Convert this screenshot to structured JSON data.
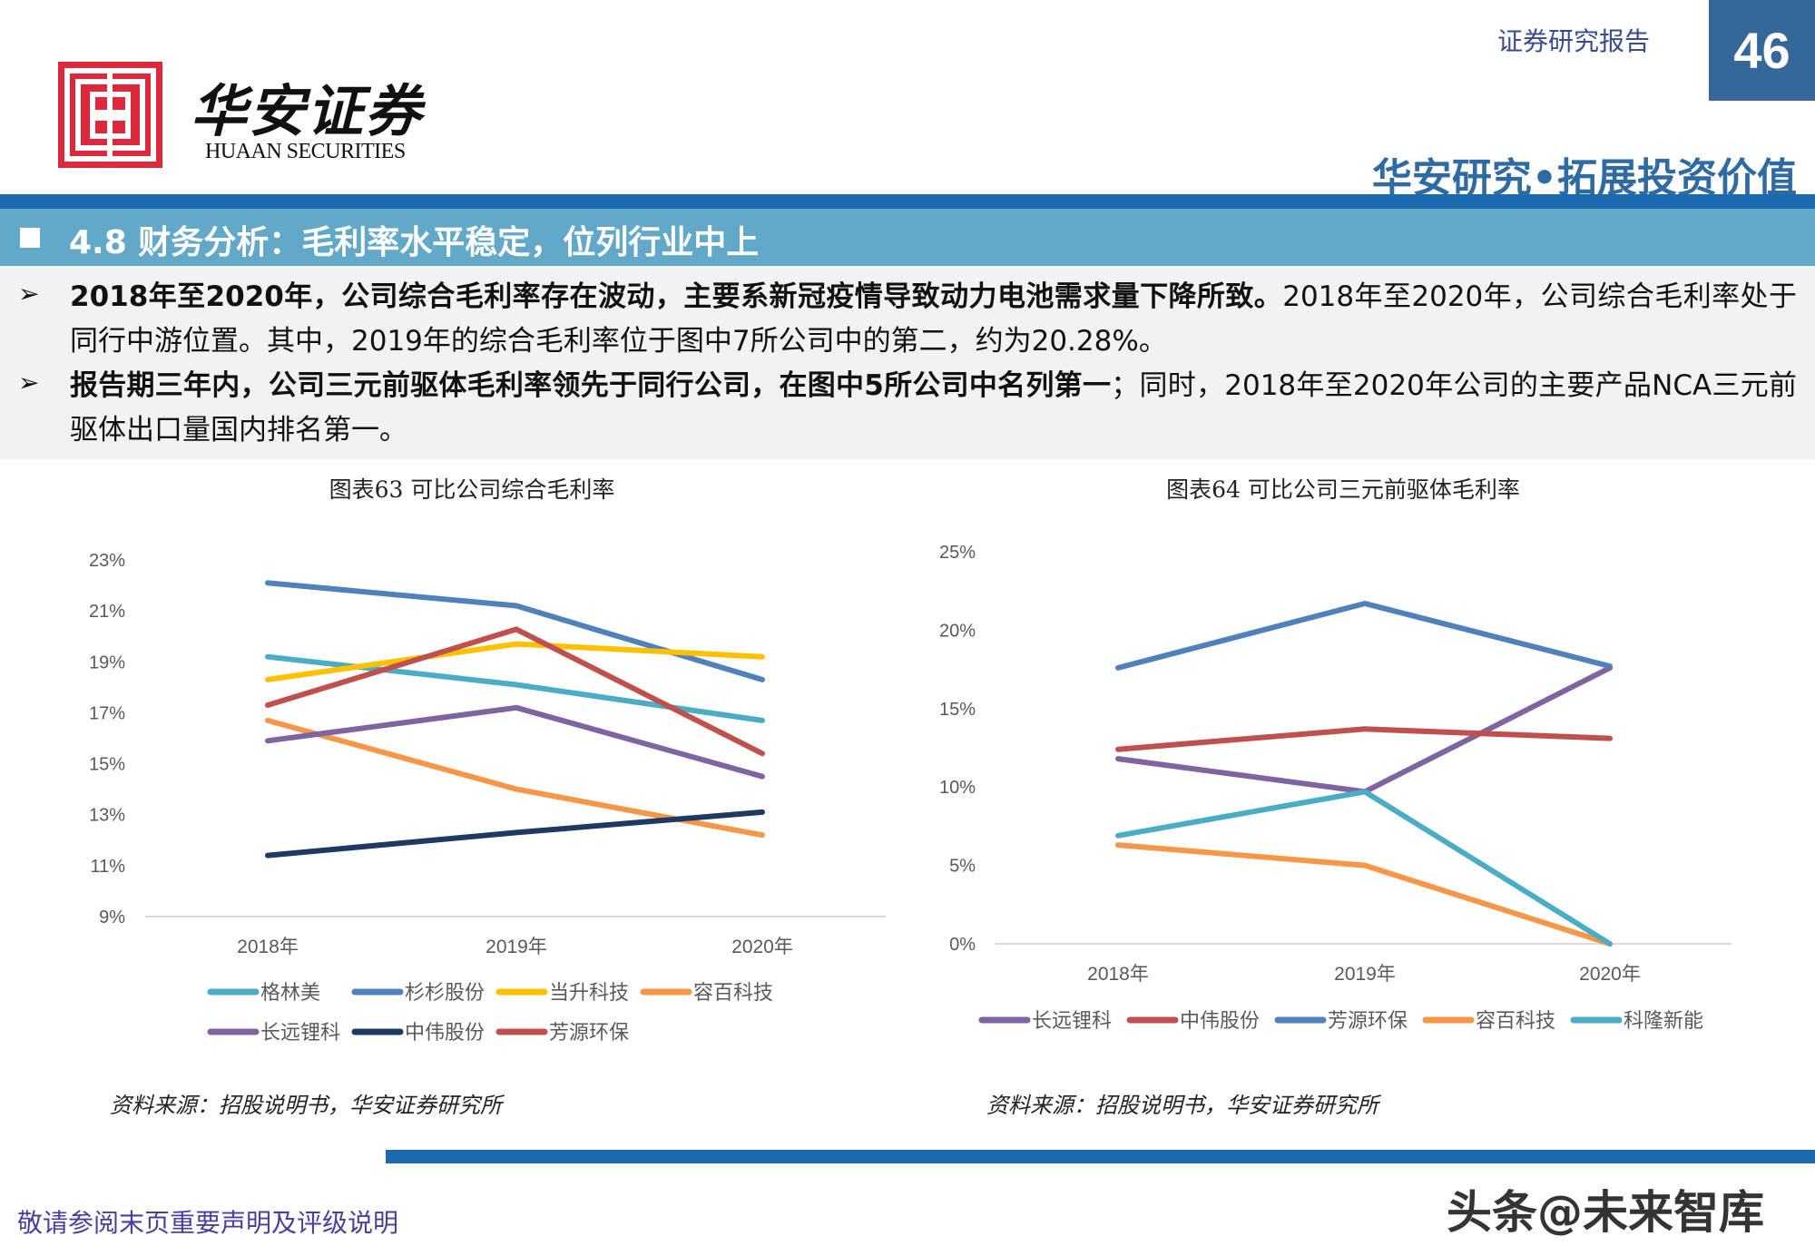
{
  "header": {
    "logo_cn": "华安证券",
    "logo_en": "HUAAN SECURITIES",
    "report_type": "证券研究报告",
    "page_number": "46",
    "slogan": "华安研究•拓展投资价值"
  },
  "section": {
    "title": "4.8 财务分析：毛利率水平稳定，位列行业中上"
  },
  "bullets": [
    {
      "bold": "2018年至2020年，公司综合毛利率存在波动，主要系新冠疫情导致动力电池需求量下降所致。",
      "normal": "2018年至2020年，公司综合毛利率处于同行中游位置。其中，2019年的综合毛利率位于图中7所公司中的第二，约为20.28%。"
    },
    {
      "bold": "报告期三年内，公司三元前驱体毛利率领先于同行公司，在图中5所公司中名列第一",
      "normal": "；同时，2018年至2020年公司的主要产品NCA三元前驱体出口量国内排名第一。"
    }
  ],
  "chart_data": [
    {
      "type": "line",
      "title": "图表63  可比公司综合毛利率",
      "categories": [
        "2018年",
        "2019年",
        "2020年"
      ],
      "ylim": [
        9,
        23
      ],
      "yticks": [
        "9%",
        "11%",
        "13%",
        "15%",
        "17%",
        "19%",
        "21%",
        "23%"
      ],
      "ytick_values": [
        9,
        11,
        13,
        15,
        17,
        19,
        21,
        23
      ],
      "grid": false,
      "legend_placement": "bottom",
      "series": [
        {
          "name": "格林美",
          "color": "#4bacc6",
          "values": [
            19.2,
            18.1,
            16.7
          ]
        },
        {
          "name": "杉杉股份",
          "color": "#4f81bd",
          "values": [
            22.1,
            21.2,
            18.3
          ]
        },
        {
          "name": "当升科技",
          "color": "#ffc000",
          "values": [
            18.3,
            19.7,
            19.2
          ]
        },
        {
          "name": "容百科技",
          "color": "#f79646",
          "values": [
            16.7,
            14.0,
            12.2
          ]
        },
        {
          "name": "长远锂科",
          "color": "#8064a2",
          "values": [
            15.9,
            17.2,
            14.5
          ]
        },
        {
          "name": "中伟股份",
          "color": "#1f3864",
          "values": [
            11.4,
            12.3,
            13.1
          ]
        },
        {
          "name": "芳源环保",
          "color": "#c0504d",
          "values": [
            17.3,
            20.28,
            15.4
          ]
        }
      ],
      "source": "资料来源：招股说明书，华安证券研究所"
    },
    {
      "type": "line",
      "title": "图表64  可比公司三元前驱体毛利率",
      "categories": [
        "2018年",
        "2019年",
        "2020年"
      ],
      "ylim": [
        0,
        25
      ],
      "yticks": [
        "0%",
        "5%",
        "10%",
        "15%",
        "20%",
        "25%"
      ],
      "ytick_values": [
        0,
        5,
        10,
        15,
        20,
        25
      ],
      "grid": false,
      "legend_placement": "bottom",
      "series": [
        {
          "name": "长远锂科",
          "color": "#8064a2",
          "values": [
            11.8,
            9.7,
            17.6
          ]
        },
        {
          "name": "中伟股份",
          "color": "#c0504d",
          "values": [
            12.4,
            13.7,
            13.1
          ]
        },
        {
          "name": "芳源环保",
          "color": "#4f81bd",
          "values": [
            17.6,
            21.7,
            17.7
          ]
        },
        {
          "name": "容百科技",
          "color": "#f79646",
          "values": [
            6.3,
            5.0,
            0
          ]
        },
        {
          "name": "科隆新能",
          "color": "#4bacc6",
          "values": [
            6.9,
            9.7,
            0
          ]
        }
      ],
      "source": "资料来源：招股说明书，华安证券研究所"
    }
  ],
  "footer": {
    "note": "敬请参阅末页重要声明及评级说明",
    "watermark": "头条@未来智库"
  }
}
